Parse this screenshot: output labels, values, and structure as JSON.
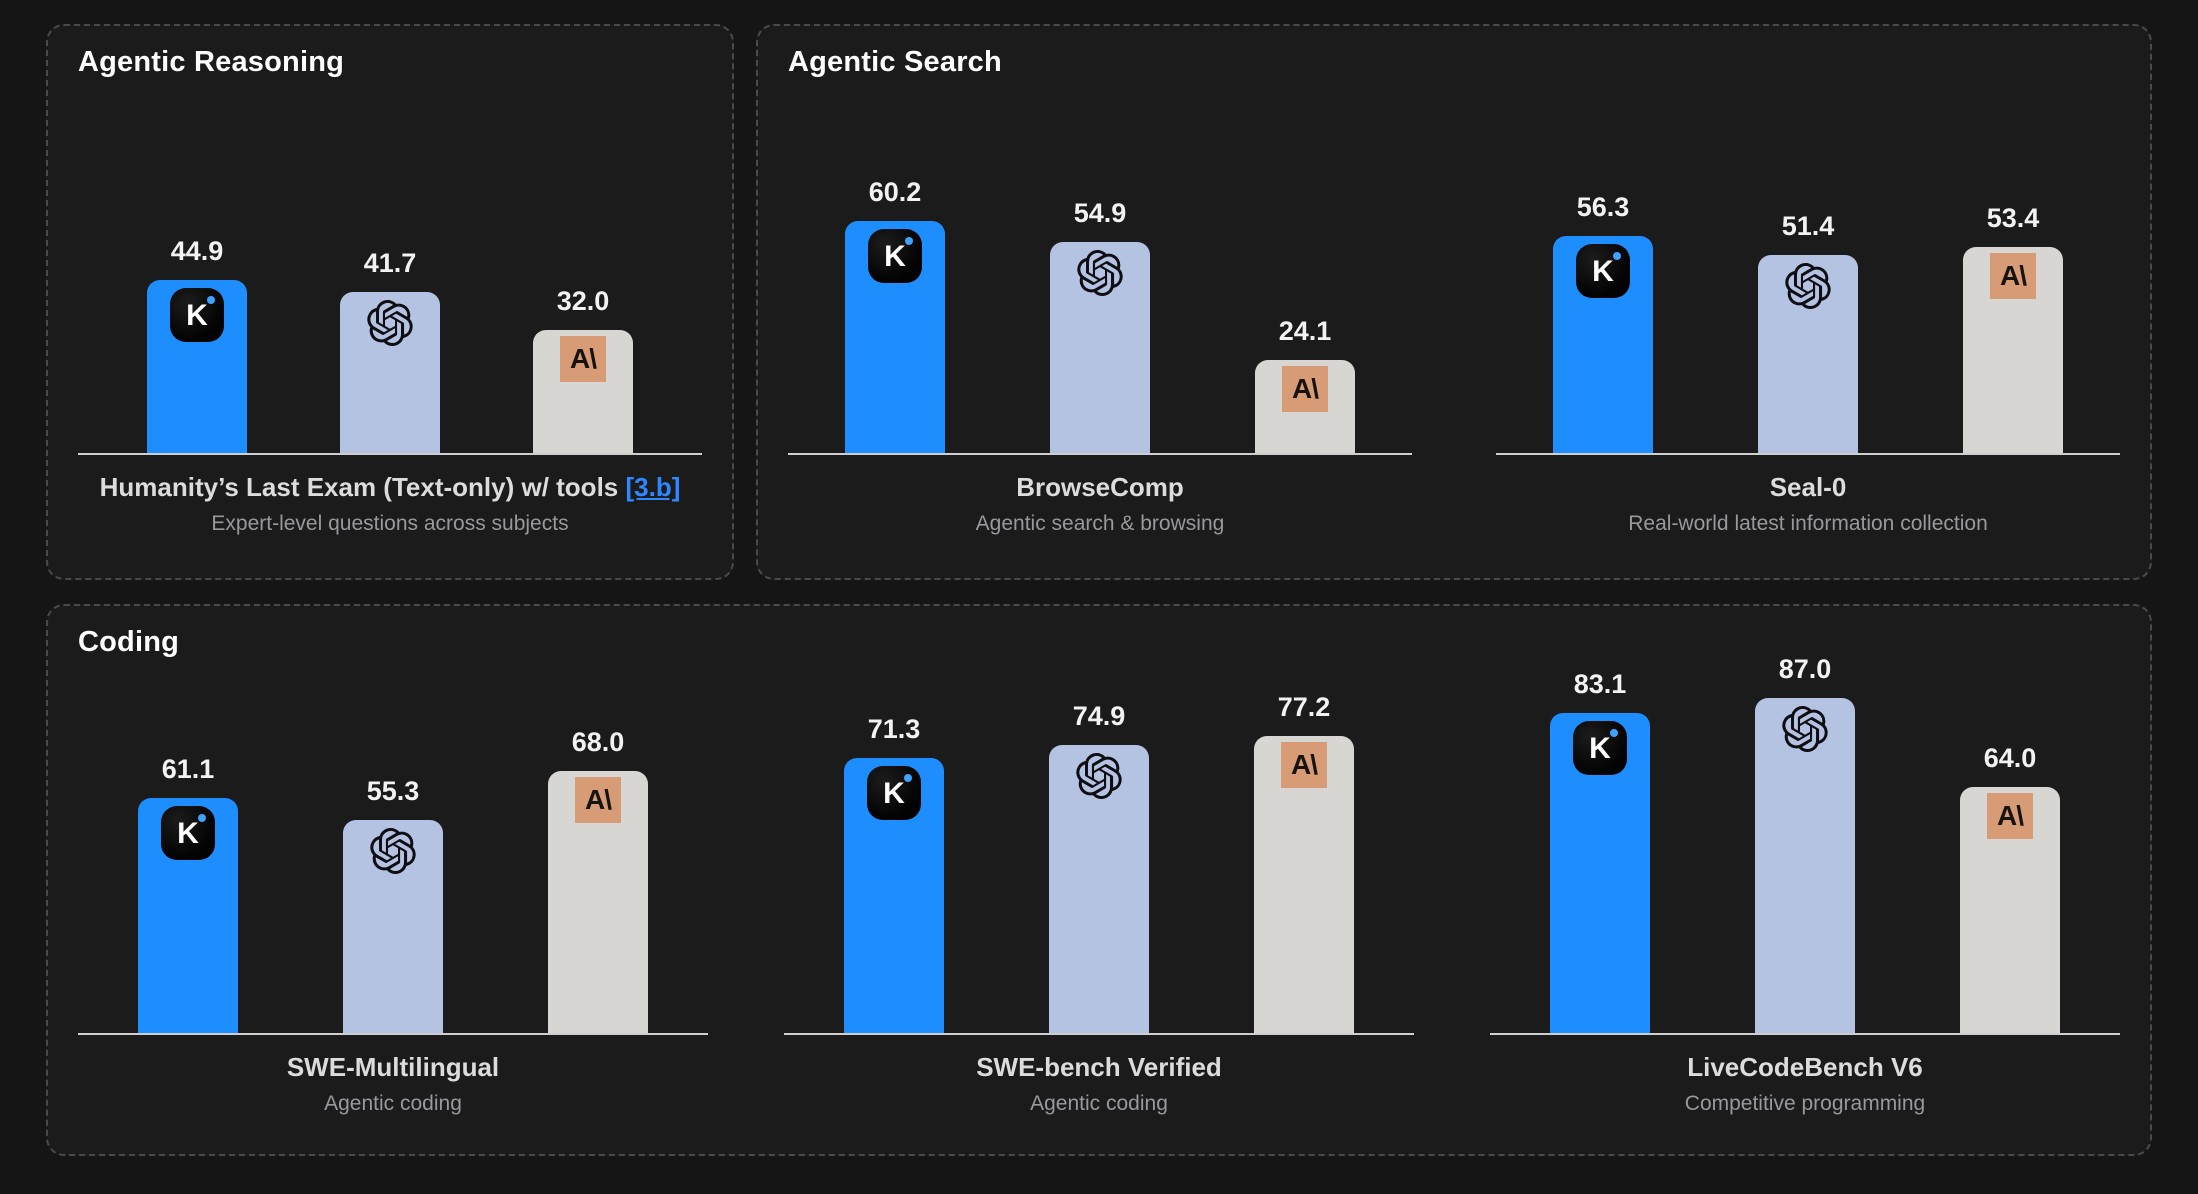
{
  "panels": [
    {
      "title": "Agentic Reasoning"
    },
    {
      "title": "Agentic Search"
    },
    {
      "title": "Coding"
    }
  ],
  "series": [
    {
      "name": "Kimi",
      "color": "#1e8eff",
      "icon": "kimi-logo"
    },
    {
      "name": "OpenAI",
      "color": "#b4c3e2",
      "icon": "openai-logo"
    },
    {
      "name": "Anthropic",
      "color": "#d7d6d2",
      "icon": "anthropic-logo"
    }
  ],
  "icons": {
    "kimi_glyph": "K",
    "anthropic_glyph": "A\\"
  },
  "colors": {
    "page_background": "#151515",
    "panel_background": "#1b1b1b",
    "panel_border": "#4a4a4a",
    "axis_line": "#cfcfcf",
    "value_text": "#f2f2f2",
    "benchmark_name_text": "#dcdcdc",
    "subtitle_text": "#98989d",
    "link": "#2f87ff",
    "anthropic_logo_background": "#d79b76"
  },
  "chart_data": [
    {
      "type": "bar",
      "title": "Humanity’s Last Exam (Text-only) w/ tools",
      "title_link": "[3.b]",
      "subtitle": "Expert-level questions across subjects",
      "categories": [
        "Kimi",
        "OpenAI",
        "Anthropic"
      ],
      "values": [
        44.9,
        41.7,
        32.0
      ],
      "ylim": [
        0,
        100
      ],
      "grid": false,
      "legend": "none"
    },
    {
      "type": "bar",
      "title": "BrowseComp",
      "subtitle": "Agentic search & browsing",
      "categories": [
        "Kimi",
        "OpenAI",
        "Anthropic"
      ],
      "values": [
        60.2,
        54.9,
        24.1
      ],
      "ylim": [
        0,
        100
      ],
      "grid": false,
      "legend": "none"
    },
    {
      "type": "bar",
      "title": "Seal-0",
      "subtitle": "Real-world latest information collection",
      "categories": [
        "Kimi",
        "OpenAI",
        "Anthropic"
      ],
      "values": [
        56.3,
        51.4,
        53.4
      ],
      "ylim": [
        0,
        100
      ],
      "grid": false,
      "legend": "none"
    },
    {
      "type": "bar",
      "title": "SWE-Multilingual",
      "subtitle": "Agentic coding",
      "categories": [
        "Kimi",
        "OpenAI",
        "Anthropic"
      ],
      "values": [
        61.1,
        55.3,
        68.0
      ],
      "ylim": [
        0,
        100
      ],
      "grid": false,
      "legend": "none"
    },
    {
      "type": "bar",
      "title": "SWE-bench Verified",
      "subtitle": "Agentic coding",
      "categories": [
        "Kimi",
        "OpenAI",
        "Anthropic"
      ],
      "values": [
        71.3,
        74.9,
        77.2
      ],
      "ylim": [
        0,
        100
      ],
      "grid": false,
      "legend": "none"
    },
    {
      "type": "bar",
      "title": "LiveCodeBench V6",
      "subtitle": "Competitive programming",
      "categories": [
        "Kimi",
        "OpenAI",
        "Anthropic"
      ],
      "values": [
        83.1,
        87.0,
        64.0
      ],
      "ylim": [
        0,
        100
      ],
      "grid": false,
      "legend": "none"
    }
  ]
}
